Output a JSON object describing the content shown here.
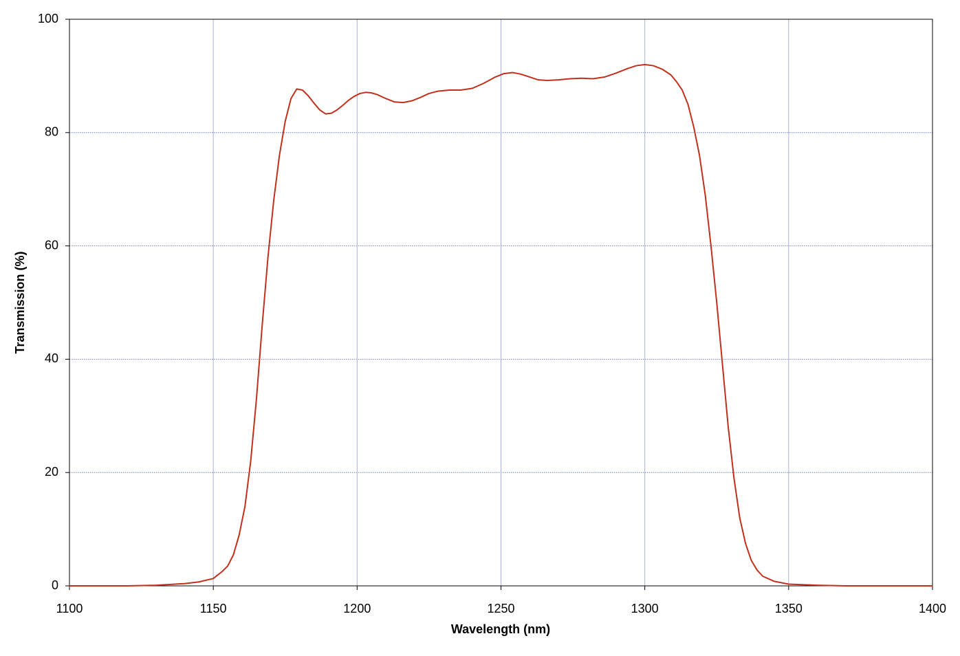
{
  "chart_data": {
    "type": "line",
    "x_label": "Wavelength (nm)",
    "y_label": "Transmission (%)",
    "x": [
      1100,
      1120,
      1130,
      1140,
      1145,
      1150,
      1153,
      1155,
      1157,
      1159,
      1161,
      1163,
      1165,
      1167,
      1169,
      1171,
      1173,
      1175,
      1177,
      1179,
      1181,
      1183,
      1185,
      1187,
      1189,
      1191,
      1193,
      1195,
      1197,
      1199,
      1201,
      1203,
      1205,
      1207,
      1210,
      1213,
      1216,
      1219,
      1222,
      1225,
      1228,
      1232,
      1236,
      1240,
      1244,
      1248,
      1251,
      1254,
      1257,
      1260,
      1263,
      1266,
      1270,
      1274,
      1278,
      1282,
      1286,
      1290,
      1294,
      1297,
      1300,
      1303,
      1306,
      1309,
      1311,
      1313,
      1315,
      1317,
      1319,
      1321,
      1323,
      1325,
      1327,
      1329,
      1331,
      1333,
      1335,
      1337,
      1339,
      1341,
      1345,
      1350,
      1360,
      1370,
      1400
    ],
    "values": [
      0,
      0,
      0.1,
      0.4,
      0.7,
      1.3,
      2.5,
      3.5,
      5.5,
      9,
      14,
      22,
      33,
      46,
      58,
      68,
      76,
      82,
      86,
      87.7,
      87.5,
      86.5,
      85.2,
      84,
      83.3,
      83.4,
      84,
      84.8,
      85.7,
      86.4,
      86.9,
      87.1,
      87,
      86.7,
      86,
      85.4,
      85.3,
      85.6,
      86.2,
      86.9,
      87.3,
      87.5,
      87.5,
      87.8,
      88.7,
      89.8,
      90.4,
      90.6,
      90.3,
      89.8,
      89.3,
      89.2,
      89.3,
      89.5,
      89.6,
      89.5,
      89.8,
      90.5,
      91.3,
      91.8,
      92,
      91.8,
      91.2,
      90.2,
      89,
      87.5,
      85,
      81,
      76,
      69,
      60,
      50,
      39,
      28,
      19,
      12,
      7.5,
      4.5,
      2.8,
      1.7,
      0.8,
      0.3,
      0.1,
      0,
      0
    ],
    "color": "#c0301a",
    "xlim": [
      1100,
      1400
    ],
    "xticks": [
      1100,
      1150,
      1200,
      1250,
      1300,
      1350,
      1400
    ],
    "ylim": [
      0,
      100
    ],
    "yticks": [
      0,
      20,
      40,
      60,
      80,
      100
    ],
    "grid": true
  }
}
